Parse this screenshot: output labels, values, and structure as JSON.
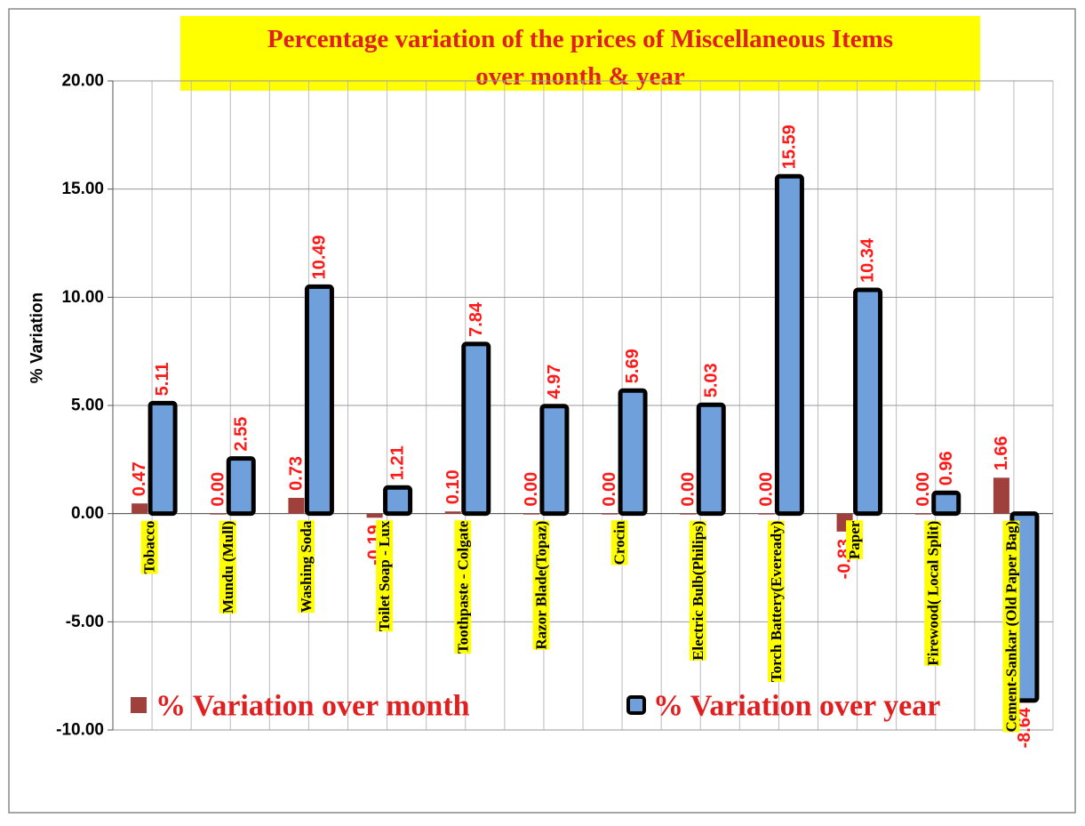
{
  "chart_data": {
    "type": "bar",
    "title": "Percentage variation of the prices of Miscellaneous Items",
    "subtitle": "over month & year",
    "y_label": "% Variation",
    "categories": [
      "Tobacco",
      "Mundu (Mull)",
      "Washing Soda",
      "Toilet Soap - Lux",
      "Toothpaste - Colgate",
      "Razor Blade(Topaz)",
      "Crocin",
      "Electric Bulb(Philips)",
      "Torch Battery(Eveready)",
      "Paper",
      "Firewood( Local Split)",
      "Cement-Sankar (Old Paper Bag)"
    ],
    "series": [
      {
        "name": "% Variation over month",
        "color": "#a0403c",
        "values": [
          0.47,
          0,
          0.73,
          -0.19,
          0.1,
          0,
          0,
          0,
          0,
          -0.83,
          0,
          1.66
        ],
        "value_labels": [
          "0.47",
          "0.00",
          "0.73",
          "-0.19",
          "0.10",
          "0.00",
          "0.00",
          "0.00",
          "0.00",
          "-0.83",
          "0.00",
          "1.66"
        ]
      },
      {
        "name": "% Variation over year",
        "color": "#6fa0dc",
        "values": [
          5.11,
          2.55,
          10.49,
          1.21,
          7.84,
          4.97,
          5.69,
          5.03,
          15.59,
          10.34,
          0.96,
          -8.64
        ],
        "value_labels": [
          "5.11",
          "2.55",
          "10.49",
          "1.21",
          "7.84",
          "4.97",
          "5.69",
          "5.03",
          "15.59",
          "10.34",
          "0.96",
          "-8.64"
        ]
      }
    ],
    "ylim": [
      -10,
      20
    ],
    "yticks": [
      {
        "value": -10,
        "label": "-10.00"
      },
      {
        "value": -5,
        "label": "-5.00"
      },
      {
        "value": 0,
        "label": "0.00"
      },
      {
        "value": 5,
        "label": "5.00"
      },
      {
        "value": 10,
        "label": "10.00"
      },
      {
        "value": 15,
        "label": "15.00"
      },
      {
        "value": 20,
        "label": "20.00"
      }
    ],
    "grid": true
  }
}
